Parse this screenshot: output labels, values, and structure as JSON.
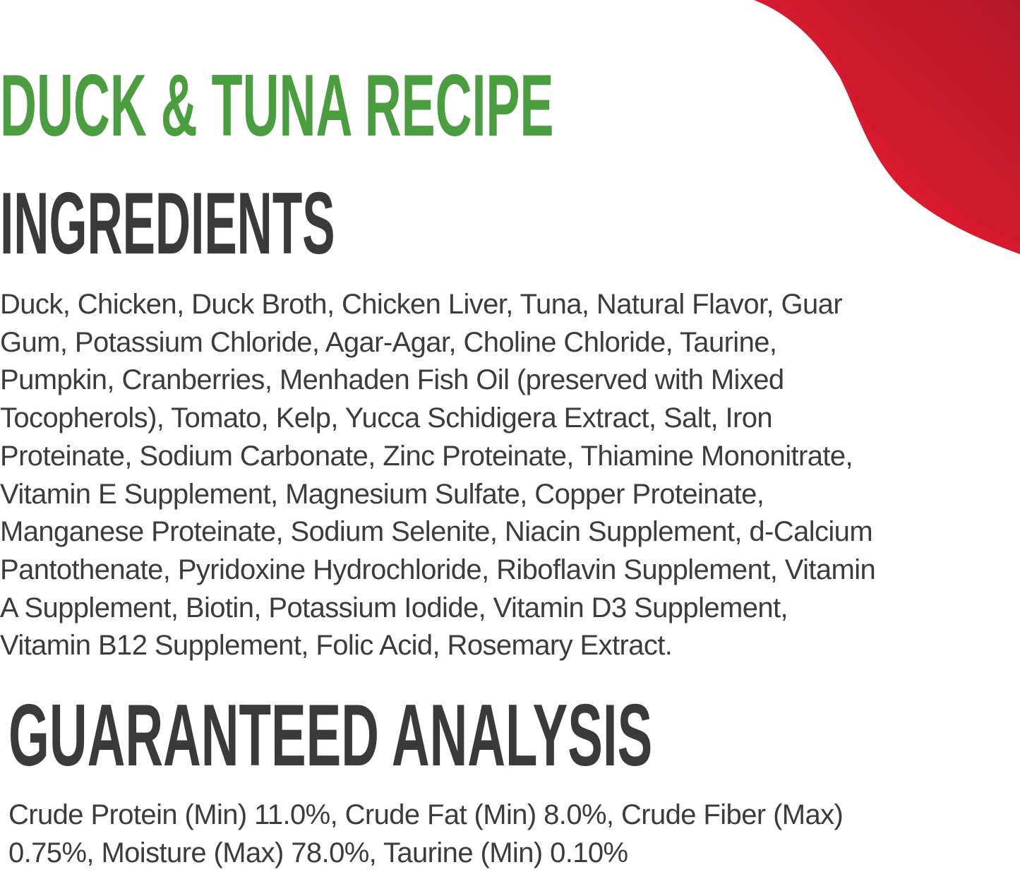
{
  "brand_color": "#4a9e3f",
  "accent_color": "#e31b2d",
  "title": "DUCK & TUNA RECIPE",
  "ingredients": {
    "heading": "INGREDIENTS",
    "lines": [
      "Duck, Chicken, Duck Broth, Chicken Liver, Tuna, Natural Flavor, Guar",
      "Gum, Potassium Chloride, Agar-Agar, Choline Chloride, Taurine,",
      "Pumpkin, Cranberries, Menhaden Fish Oil (preserved with Mixed",
      "Tocopherols), Tomato, Kelp, Yucca Schidigera Extract, Salt, Iron",
      "Proteinate, Sodium Carbonate, Zinc Proteinate, Thiamine Mononitrate,",
      "Vitamin E Supplement, Magnesium Sulfate, Copper Proteinate,",
      "Manganese Proteinate, Sodium Selenite, Niacin Supplement, d-Calcium",
      "Pantothenate, Pyridoxine Hydrochloride, Riboflavin Supplement, Vitamin",
      "A Supplement, Biotin, Potassium Iodide, Vitamin D3 Supplement,",
      "Vitamin B12 Supplement, Folic Acid, Rosemary Extract."
    ]
  },
  "guaranteed_analysis": {
    "heading": "GUARANTEED ANALYSIS",
    "lines": [
      "Crude Protein (Min) 11.0%, Crude Fat (Min) 8.0%, Crude Fiber (Max)",
      "0.75%, Moisture (Max) 78.0%, Taurine (Min) 0.10%"
    ]
  }
}
